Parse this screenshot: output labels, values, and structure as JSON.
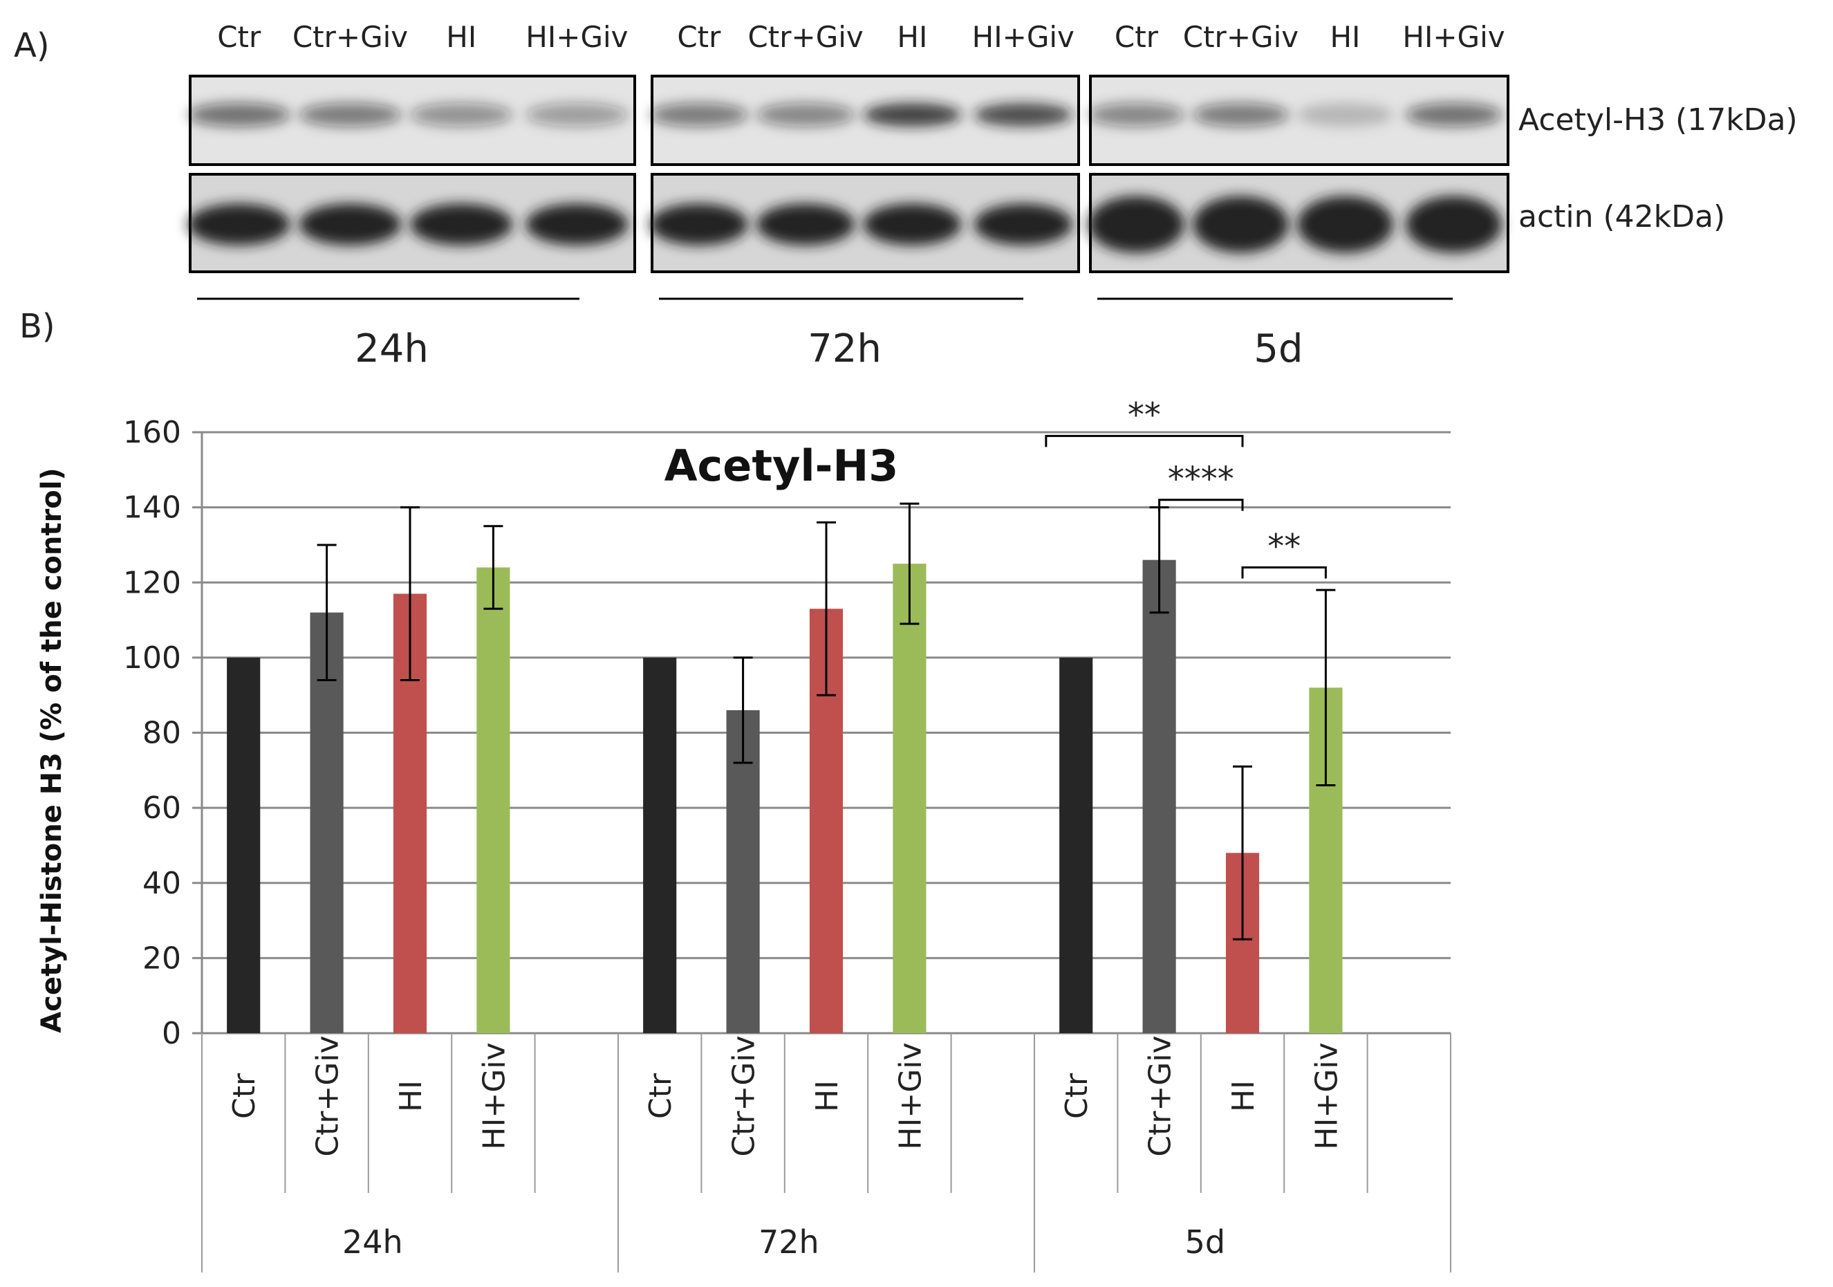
{
  "panel_labels": {
    "a": "A)",
    "b": "B)"
  },
  "blot": {
    "lane_labels": [
      "Ctr",
      "Ctr+Giv",
      "HI",
      "HI+Giv"
    ],
    "group_labels": [
      "24h",
      "72h",
      "5d"
    ],
    "row_labels": [
      "Acetyl-H3 (17kDa)",
      "actin (42kDa)"
    ],
    "band_color": "#1a1a1a",
    "membrane_color": "#e4e4e4"
  },
  "chart_data": {
    "type": "bar",
    "title": "Acetyl-H3",
    "ylabel": "Acetyl-Histone H3 (% of the control)",
    "xlabel": "",
    "ylim": [
      0,
      160
    ],
    "yticks": [
      0,
      20,
      40,
      60,
      80,
      100,
      120,
      140,
      160
    ],
    "grid": true,
    "groups": [
      "24h",
      "72h",
      "5d"
    ],
    "categories": [
      "Ctr",
      "Ctr+Giv",
      "HI",
      "HI+Giv"
    ],
    "colors": [
      "#262626",
      "#595959",
      "#c0504d",
      "#9bbb59"
    ],
    "series": [
      {
        "values": [
          100,
          112,
          117,
          124
        ],
        "errors": [
          0,
          18,
          23,
          11
        ]
      },
      {
        "values": [
          100,
          86,
          113,
          125
        ],
        "errors": [
          0,
          14,
          23,
          16
        ]
      },
      {
        "values": [
          100,
          126,
          48,
          92
        ],
        "errors": [
          0,
          14,
          23,
          26
        ]
      }
    ],
    "significance": [
      {
        "group": "5d",
        "from": "Ctr",
        "to": "HI",
        "label": "**"
      },
      {
        "group": "5d",
        "from": "Ctr+Giv",
        "to": "HI",
        "label": "****"
      },
      {
        "group": "5d",
        "from": "HI",
        "to": "HI+Giv",
        "label": "**"
      }
    ]
  }
}
